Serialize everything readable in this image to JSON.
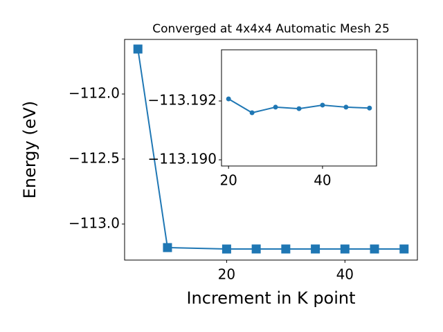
{
  "chart_data": [
    {
      "type": "line",
      "title": "Converged at 4x4x4 Automatic Mesh 25",
      "x_label": "Increment in K point",
      "y_label": "Energy (eV)",
      "x": [
        5,
        10,
        20,
        25,
        30,
        35,
        40,
        45,
        50
      ],
      "series": [
        {
          "color": "#1f77b4",
          "marker": "square",
          "values": [
            -111.654,
            -113.181,
            -113.19207,
            -113.1916,
            -113.19179,
            -113.19174,
            -113.19186,
            -113.19179,
            -113.19176
          ]
        }
      ],
      "xlim": [
        2.75,
        52.25
      ],
      "xticks": [
        20,
        40
      ],
      "ylim": [
        -113.277,
        -111.58
      ],
      "yticks": [
        {
          "value": -113.0,
          "label": "−113.0"
        },
        {
          "value": -112.5,
          "label": "−112.5"
        },
        {
          "value": -112.0,
          "label": "−112.0"
        }
      ]
    },
    {
      "type": "line",
      "x": [
        20,
        25,
        30,
        35,
        40,
        45,
        50
      ],
      "series": [
        {
          "color": "#1f77b4",
          "marker": "circle",
          "values": [
            -113.19207,
            -113.1916,
            -113.19179,
            -113.19174,
            -113.19186,
            -113.19179,
            -113.19176
          ]
        }
      ],
      "xlim": [
        18.5,
        51.5
      ],
      "xticks": [
        20,
        40
      ],
      "ylim": [
        -113.18979,
        -113.19374
      ],
      "yticks": [
        {
          "value": -113.19,
          "label": "−113.190"
        },
        {
          "value": -113.192,
          "label": "−113.192"
        }
      ]
    }
  ]
}
